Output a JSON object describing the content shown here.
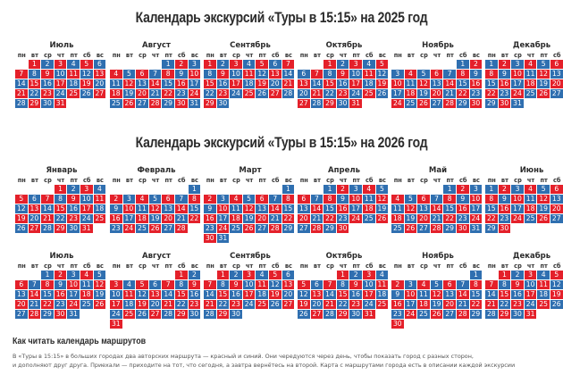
{
  "colors": {
    "red": "#e4202a",
    "blue": "#2f6fb0"
  },
  "weekdays": [
    "пн",
    "вт",
    "ср",
    "чт",
    "пт",
    "сб",
    "вс"
  ],
  "sections": [
    {
      "title": "Календарь экскурсий «Туры в 15:15» на 2025 год",
      "rows": [
        [
          {
            "name": "Июль",
            "start": 2,
            "days": 31,
            "odd": "red"
          },
          {
            "name": "Август",
            "start": 5,
            "days": 31,
            "odd": "blue"
          },
          {
            "name": "Сентябрь",
            "start": 1,
            "days": 30,
            "odd": "red"
          },
          {
            "name": "Октябрь",
            "start": 3,
            "days": 31,
            "odd": "red"
          },
          {
            "name": "Ноябрь",
            "start": 6,
            "days": 30,
            "odd": "blue"
          },
          {
            "name": "Декабрь",
            "start": 1,
            "days": 31,
            "odd": "blue"
          }
        ]
      ]
    },
    {
      "title": "Календарь экскурсий «Туры в 15:15» на 2026 год",
      "rows": [
        [
          {
            "name": "Январь",
            "start": 4,
            "days": 31,
            "odd": "red"
          },
          {
            "name": "Февраль",
            "start": 7,
            "days": 28,
            "odd": "blue"
          },
          {
            "name": "Март",
            "start": 7,
            "days": 31,
            "odd": "blue"
          },
          {
            "name": "Апрель",
            "start": 3,
            "days": 30,
            "odd": "blue"
          },
          {
            "name": "Май",
            "start": 5,
            "days": 31,
            "odd": "blue"
          },
          {
            "name": "Июнь",
            "start": 1,
            "days": 30,
            "odd": "blue"
          }
        ],
        [
          {
            "name": "Июль",
            "start": 3,
            "days": 31,
            "odd": "blue"
          },
          {
            "name": "Август",
            "start": 6,
            "days": 31,
            "odd": "red"
          },
          {
            "name": "Сентябрь",
            "start": 2,
            "days": 30,
            "odd": "red"
          },
          {
            "name": "Октябрь",
            "start": 4,
            "days": 31,
            "odd": "red"
          },
          {
            "name": "Ноябрь",
            "start": 7,
            "days": 30,
            "odd": "blue"
          },
          {
            "name": "Декабрь",
            "start": 2,
            "days": 31,
            "odd": "red"
          }
        ]
      ]
    }
  ],
  "legend": {
    "heading": "Как читать календарь маршрутов",
    "line1": "В «Туры в 15:15» в больших городах два авторских маршрута — красный и синий. Они чередуются через день, чтобы показать город с разных сторон,",
    "line2": "и дополняют друг друга. Приехали — приходите на тот, что сегодня, а завтра вернётесь на второй. Карта с маршрутами города есть в описании каждой экскурсии"
  }
}
